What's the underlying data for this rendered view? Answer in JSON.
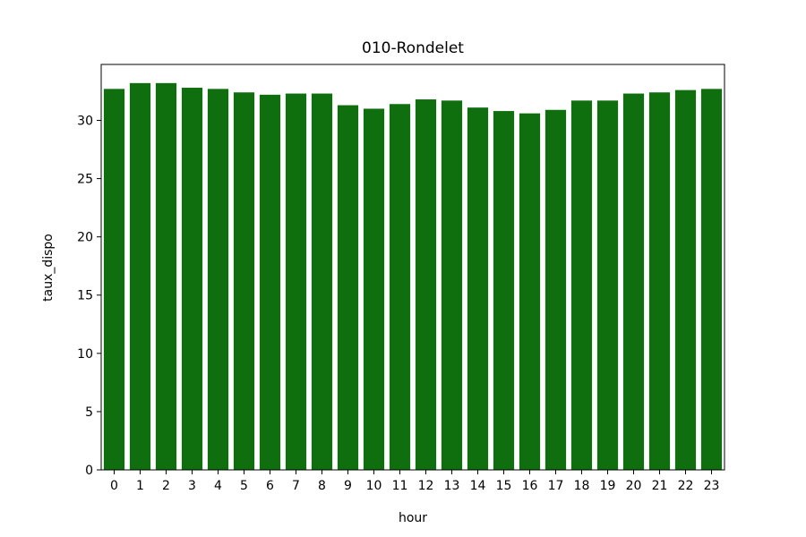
{
  "chart_data": {
    "type": "bar",
    "title": "010-Rondelet",
    "xlabel": "hour",
    "ylabel": "taux_dispo",
    "categories": [
      "0",
      "1",
      "2",
      "3",
      "4",
      "5",
      "6",
      "7",
      "8",
      "9",
      "10",
      "11",
      "12",
      "13",
      "14",
      "15",
      "16",
      "17",
      "18",
      "19",
      "20",
      "21",
      "22",
      "23"
    ],
    "values": [
      32.7,
      33.2,
      33.2,
      32.8,
      32.7,
      32.4,
      32.2,
      32.3,
      32.3,
      31.3,
      31.0,
      31.4,
      31.8,
      31.7,
      31.1,
      30.8,
      30.6,
      30.9,
      31.7,
      31.7,
      32.3,
      32.4,
      32.6,
      32.7
    ],
    "ylim": [
      0,
      34.8
    ],
    "yticks": [
      0,
      5,
      10,
      15,
      20,
      25,
      30
    ],
    "bar_color": "#0f6f0f",
    "grid": false,
    "legend": "none"
  }
}
